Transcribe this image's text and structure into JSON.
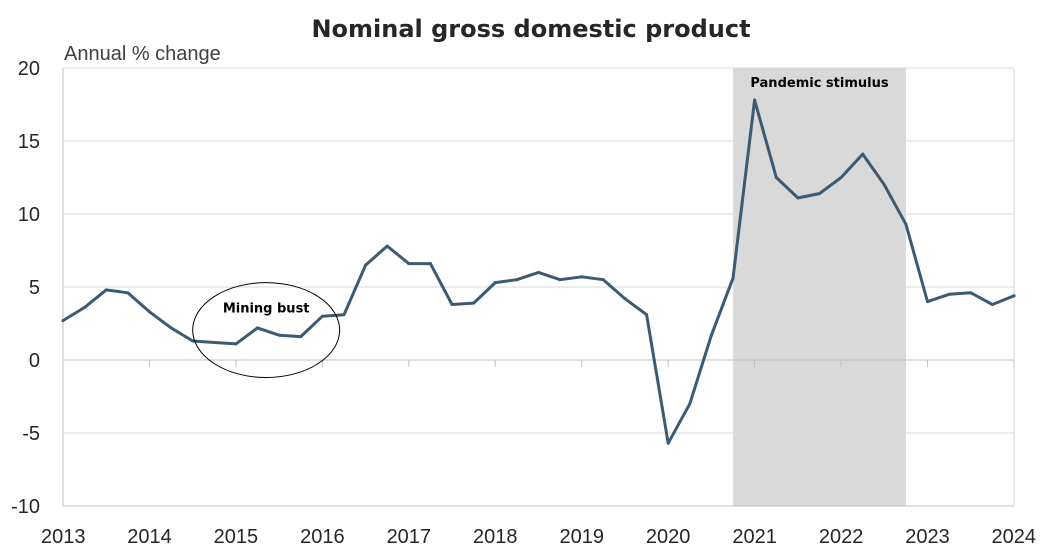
{
  "chart_data": {
    "type": "line",
    "title": "Nominal gross domestic product",
    "ylabel": "Annual % change",
    "xlabel": "",
    "xlim": [
      2013,
      2024
    ],
    "ylim": [
      -10,
      20
    ],
    "x_ticks": [
      "2013",
      "2014",
      "2015",
      "2016",
      "2017",
      "2018",
      "2019",
      "2020",
      "2021",
      "2022",
      "2023",
      "2024"
    ],
    "y_ticks": [
      "20",
      "15",
      "10",
      "5",
      "0",
      "-5",
      "-10"
    ],
    "grid": "horizontal",
    "colors": {
      "line": "#3d5a73",
      "band": "#d9d9d9",
      "grid": "#d9d9d9"
    },
    "series": [
      {
        "x": [
          2013.0,
          2013.25,
          2013.5,
          2013.75,
          2014.0,
          2014.25,
          2014.5,
          2014.75,
          2015.0,
          2015.25,
          2015.5,
          2015.75,
          2016.0,
          2016.25,
          2016.5,
          2016.75,
          2017.0,
          2017.25,
          2017.5,
          2017.75,
          2018.0,
          2018.25,
          2018.5,
          2018.75,
          2019.0,
          2019.25,
          2019.5,
          2019.75,
          2020.0,
          2020.25,
          2020.5,
          2020.75,
          2021.0,
          2021.25,
          2021.5,
          2021.75,
          2022.0,
          2022.25,
          2022.5,
          2022.75,
          2023.0,
          2023.25,
          2023.5,
          2023.75,
          2024.0
        ],
        "values": [
          2.7,
          3.6,
          4.8,
          4.6,
          3.3,
          2.2,
          1.3,
          1.2,
          1.1,
          2.2,
          1.7,
          1.6,
          3.0,
          3.1,
          6.5,
          7.8,
          6.6,
          6.6,
          3.8,
          3.9,
          5.3,
          5.5,
          6.0,
          5.5,
          5.7,
          5.5,
          4.2,
          3.1,
          -5.7,
          -3.0,
          1.7,
          5.6,
          17.8,
          12.5,
          11.1,
          11.4,
          12.5,
          14.1,
          12.0,
          9.3,
          4.0,
          4.5,
          4.6,
          3.8,
          4.4
        ]
      }
    ],
    "annotations": [
      {
        "label": "Pandemic stimulus",
        "type": "shaded-band",
        "x_range": [
          2020.75,
          2022.75
        ]
      },
      {
        "label": "Mining bust",
        "type": "ellipse",
        "x_range": [
          2014.5,
          2016.2
        ],
        "y_range": [
          -1.2,
          5.3
        ]
      }
    ]
  }
}
